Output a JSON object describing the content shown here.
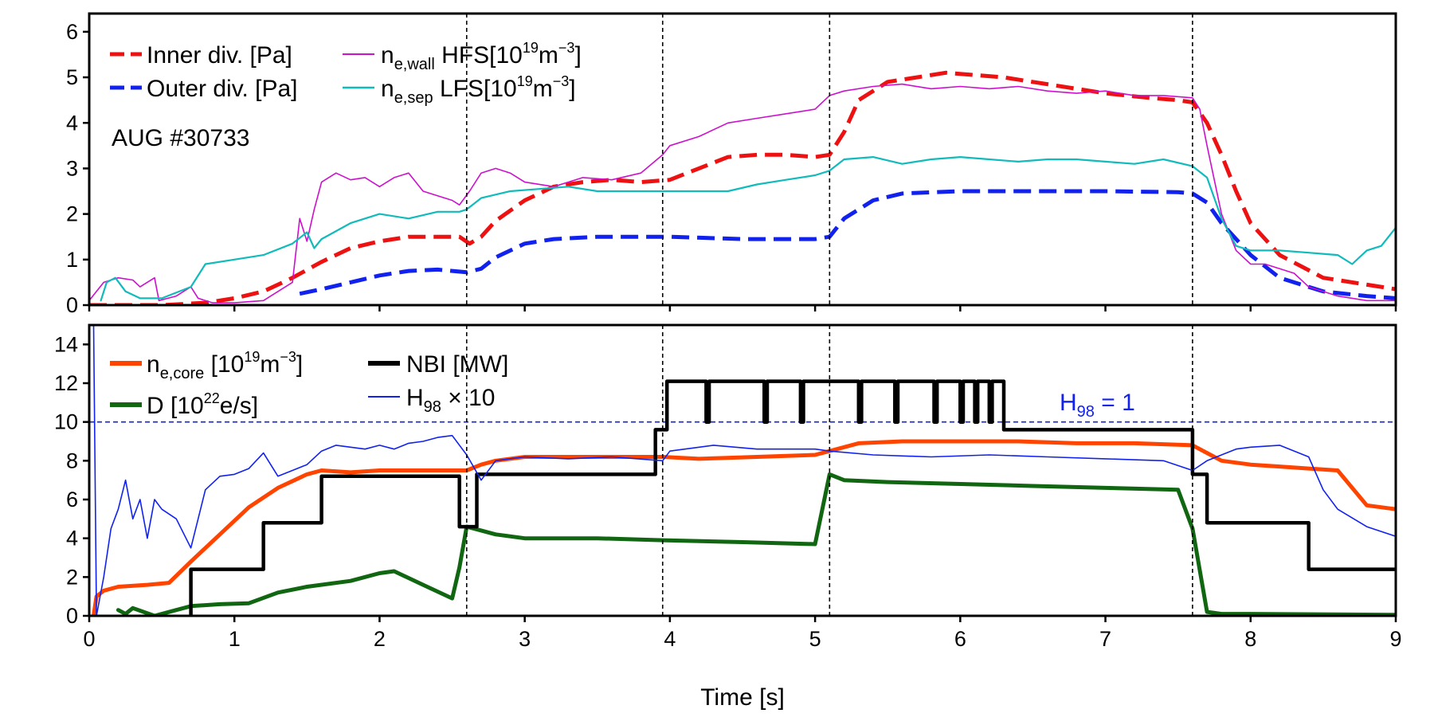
{
  "chart_data": [
    {
      "type": "line",
      "panel": "top",
      "annotation": "AUG #30733",
      "xlim": [
        0,
        9
      ],
      "ylim": [
        0,
        6.4
      ],
      "yticks": [
        0,
        1,
        2,
        3,
        4,
        5,
        6
      ],
      "vlines": [
        2.6,
        3.95,
        5.1,
        7.6
      ],
      "legend_placement": "top-left",
      "series": [
        {
          "name": "Inner div. [Pa]",
          "style": "dashed",
          "color": "#ee1111",
          "width": 5,
          "x": [
            0,
            0.5,
            0.8,
            1.0,
            1.2,
            1.4,
            1.6,
            1.8,
            2.0,
            2.2,
            2.4,
            2.55,
            2.62,
            2.7,
            2.8,
            3.0,
            3.2,
            3.4,
            3.6,
            3.8,
            4.0,
            4.2,
            4.4,
            4.6,
            4.8,
            5.0,
            5.1,
            5.2,
            5.3,
            5.5,
            5.7,
            5.9,
            6.1,
            6.3,
            6.5,
            6.8,
            7.0,
            7.3,
            7.5,
            7.6,
            7.7,
            7.8,
            7.9,
            8.0,
            8.2,
            8.5,
            9.0
          ],
          "y": [
            0,
            0,
            0.05,
            0.15,
            0.3,
            0.6,
            0.95,
            1.25,
            1.4,
            1.5,
            1.5,
            1.5,
            1.35,
            1.5,
            1.85,
            2.3,
            2.6,
            2.7,
            2.75,
            2.7,
            2.75,
            3.0,
            3.25,
            3.3,
            3.3,
            3.25,
            3.3,
            3.8,
            4.5,
            4.9,
            5.0,
            5.1,
            5.05,
            5.0,
            4.9,
            4.75,
            4.65,
            4.55,
            4.5,
            4.45,
            4.0,
            3.3,
            2.5,
            1.8,
            1.1,
            0.6,
            0.35
          ]
        },
        {
          "name": "Outer div. [Pa]",
          "style": "dashed",
          "color": "#1122ee",
          "width": 5,
          "x": [
            1.45,
            1.6,
            1.8,
            2.0,
            2.2,
            2.4,
            2.6,
            2.7,
            2.8,
            3.0,
            3.2,
            3.5,
            4.0,
            4.5,
            5.0,
            5.1,
            5.2,
            5.4,
            5.6,
            6.0,
            6.5,
            7.0,
            7.5,
            7.6,
            7.7,
            7.8,
            8.0,
            8.2,
            8.5,
            8.8,
            9.0
          ],
          "y": [
            0.25,
            0.35,
            0.5,
            0.65,
            0.75,
            0.78,
            0.72,
            0.8,
            1.05,
            1.35,
            1.45,
            1.5,
            1.5,
            1.45,
            1.45,
            1.5,
            1.9,
            2.3,
            2.45,
            2.5,
            2.5,
            2.5,
            2.48,
            2.45,
            2.25,
            1.8,
            1.1,
            0.6,
            0.3,
            0.2,
            0.15
          ]
        },
        {
          "name": "n_e,wall HFS[10^19 m^-3]",
          "style": "solid",
          "color": "#cc11cc",
          "width": 1.6,
          "x": [
            0,
            0.05,
            0.1,
            0.2,
            0.3,
            0.35,
            0.45,
            0.48,
            0.6,
            0.7,
            0.75,
            0.85,
            1.0,
            1.2,
            1.4,
            1.45,
            1.5,
            1.55,
            1.6,
            1.7,
            1.8,
            1.9,
            2.0,
            2.1,
            2.2,
            2.3,
            2.4,
            2.5,
            2.55,
            2.62,
            2.7,
            2.8,
            2.9,
            3.0,
            3.2,
            3.4,
            3.6,
            3.8,
            3.95,
            4.0,
            4.2,
            4.4,
            4.6,
            4.8,
            5.0,
            5.1,
            5.2,
            5.4,
            5.6,
            5.8,
            6.0,
            6.2,
            6.4,
            6.6,
            6.8,
            7.0,
            7.2,
            7.4,
            7.6,
            7.65,
            7.7,
            7.8,
            7.9,
            8.0,
            8.1,
            8.2,
            8.3,
            8.4,
            8.6,
            8.8,
            9.0
          ],
          "y": [
            0.1,
            0.3,
            0.5,
            0.6,
            0.55,
            0.4,
            0.6,
            0.1,
            0.2,
            0.4,
            0.15,
            0.05,
            0.05,
            0.1,
            0.5,
            1.9,
            1.4,
            2.1,
            2.7,
            2.9,
            2.75,
            2.8,
            2.6,
            2.8,
            2.9,
            2.5,
            2.4,
            2.3,
            2.2,
            2.5,
            2.9,
            3.0,
            2.9,
            2.7,
            2.6,
            2.8,
            2.75,
            2.9,
            3.3,
            3.5,
            3.7,
            4.0,
            4.1,
            4.2,
            4.3,
            4.6,
            4.7,
            4.8,
            4.85,
            4.75,
            4.8,
            4.75,
            4.8,
            4.7,
            4.65,
            4.7,
            4.6,
            4.6,
            4.55,
            4.3,
            3.5,
            2.0,
            1.2,
            0.9,
            0.9,
            0.8,
            0.7,
            0.4,
            0.2,
            0.1,
            0.1
          ]
        },
        {
          "name": "n_e,sep LFS[10^19 m^-3]",
          "style": "solid",
          "color": "#11bbbb",
          "width": 2.2,
          "x": [
            0.08,
            0.12,
            0.18,
            0.25,
            0.35,
            0.5,
            0.7,
            0.8,
            1.0,
            1.2,
            1.4,
            1.5,
            1.55,
            1.6,
            1.8,
            2.0,
            2.2,
            2.4,
            2.55,
            2.6,
            2.7,
            2.9,
            3.1,
            3.3,
            3.5,
            3.7,
            3.95,
            4.2,
            4.4,
            4.6,
            4.8,
            5.0,
            5.1,
            5.2,
            5.4,
            5.6,
            5.8,
            6.0,
            6.2,
            6.4,
            6.6,
            6.8,
            7.0,
            7.2,
            7.4,
            7.6,
            7.7,
            7.8,
            7.9,
            8.0,
            8.2,
            8.4,
            8.6,
            8.7,
            8.8,
            8.9,
            9.0
          ],
          "y": [
            0.1,
            0.5,
            0.6,
            0.3,
            0.15,
            0.15,
            0.4,
            0.9,
            1.0,
            1.1,
            1.35,
            1.6,
            1.25,
            1.45,
            1.8,
            2.0,
            1.9,
            2.05,
            2.05,
            2.1,
            2.35,
            2.5,
            2.55,
            2.6,
            2.5,
            2.5,
            2.5,
            2.5,
            2.5,
            2.65,
            2.75,
            2.85,
            2.95,
            3.2,
            3.25,
            3.1,
            3.2,
            3.25,
            3.2,
            3.15,
            3.2,
            3.2,
            3.15,
            3.1,
            3.2,
            3.05,
            2.8,
            1.9,
            1.3,
            1.2,
            1.2,
            1.15,
            1.1,
            0.9,
            1.2,
            1.3,
            1.7
          ]
        }
      ]
    },
    {
      "type": "line",
      "panel": "bottom",
      "xlabel": "Time [s]",
      "xlim": [
        0,
        9
      ],
      "ylim": [
        0,
        15
      ],
      "xticks": [
        0,
        1,
        2,
        3,
        4,
        5,
        6,
        7,
        8,
        9
      ],
      "yticks": [
        0,
        2,
        4,
        6,
        8,
        10,
        12,
        14
      ],
      "vlines": [
        2.6,
        3.95,
        5.1,
        7.6
      ],
      "hline": {
        "y": 10,
        "label": "H98 = 1",
        "color": "#1122ee"
      },
      "legend_placement": "top-left",
      "series": [
        {
          "name": "n_e,core [10^19 m^-3]",
          "style": "solid",
          "color": "#ff4400",
          "width": 5,
          "x": [
            0.03,
            0.05,
            0.1,
            0.2,
            0.4,
            0.55,
            0.7,
            0.9,
            1.1,
            1.3,
            1.5,
            1.6,
            1.8,
            2.0,
            2.2,
            2.5,
            2.6,
            2.7,
            2.8,
            3.0,
            3.5,
            3.95,
            4.2,
            4.6,
            5.0,
            5.1,
            5.3,
            5.6,
            6.0,
            6.4,
            6.8,
            7.2,
            7.6,
            7.8,
            8.0,
            8.2,
            8.4,
            8.6,
            8.8,
            9.0
          ],
          "y": [
            0,
            1.0,
            1.3,
            1.5,
            1.6,
            1.7,
            2.8,
            4.2,
            5.6,
            6.6,
            7.3,
            7.5,
            7.4,
            7.5,
            7.5,
            7.5,
            7.5,
            7.8,
            8.0,
            8.2,
            8.2,
            8.2,
            8.1,
            8.2,
            8.3,
            8.5,
            8.9,
            9.0,
            9.0,
            9.0,
            8.9,
            8.9,
            8.8,
            8.0,
            7.8,
            7.7,
            7.6,
            7.5,
            5.7,
            5.5
          ]
        },
        {
          "name": "D [10^22 e/s]",
          "style": "solid",
          "color": "#116611",
          "width": 5,
          "x": [
            0.2,
            0.25,
            0.3,
            0.45,
            0.6,
            0.7,
            0.9,
            1.1,
            1.3,
            1.5,
            1.8,
            2.0,
            2.1,
            2.3,
            2.5,
            2.55,
            2.6,
            2.8,
            3.0,
            3.5,
            3.95,
            4.5,
            5.0,
            5.1,
            5.2,
            5.5,
            6.0,
            6.5,
            7.0,
            7.5,
            7.6,
            7.7,
            7.8,
            8.0,
            9.0
          ],
          "y": [
            0.3,
            0.1,
            0.4,
            0,
            0.3,
            0.5,
            0.6,
            0.65,
            1.2,
            1.5,
            1.8,
            2.2,
            2.3,
            1.6,
            0.9,
            2.5,
            4.6,
            4.2,
            4.0,
            4.0,
            3.9,
            3.8,
            3.7,
            7.3,
            7.0,
            6.9,
            6.8,
            6.7,
            6.6,
            6.5,
            4.5,
            0.2,
            0.1,
            0.1,
            0.05
          ]
        },
        {
          "name": "NBI [MW]",
          "style": "solid",
          "color": "#000000",
          "width": 4.5,
          "x": [
            0.7,
            0.7,
            1.2,
            1.2,
            1.6,
            1.6,
            2.55,
            2.55,
            2.67,
            2.67,
            3.9,
            3.9,
            3.98,
            3.98,
            4.25,
            4.25,
            4.27,
            4.27,
            4.65,
            4.65,
            4.67,
            4.67,
            4.9,
            4.9,
            4.92,
            4.92,
            5.3,
            5.3,
            5.32,
            5.32,
            5.55,
            5.55,
            5.57,
            5.57,
            5.82,
            5.82,
            5.84,
            5.84,
            6.0,
            6.0,
            6.02,
            6.02,
            6.1,
            6.1,
            6.12,
            6.12,
            6.2,
            6.2,
            6.22,
            6.22,
            6.3,
            6.3,
            7.6,
            7.6,
            7.7,
            7.7,
            8.4,
            8.4,
            9.0
          ],
          "y": [
            0,
            2.4,
            2.4,
            4.8,
            4.8,
            7.2,
            7.2,
            4.6,
            4.6,
            7.3,
            7.3,
            9.6,
            9.6,
            12.1,
            12.1,
            10.0,
            10.0,
            12.1,
            12.1,
            10.0,
            10.0,
            12.1,
            12.1,
            10.0,
            10.0,
            12.1,
            12.1,
            10.0,
            10.0,
            12.1,
            12.1,
            10.0,
            10.0,
            12.1,
            12.1,
            10.0,
            10.0,
            12.1,
            12.1,
            10.0,
            10.0,
            12.1,
            12.1,
            10.0,
            10.0,
            12.1,
            12.1,
            10.0,
            10.0,
            12.1,
            12.1,
            9.6,
            9.6,
            7.3,
            7.3,
            4.8,
            4.8,
            2.4,
            2.4
          ]
        },
        {
          "name": "H98 × 10",
          "style": "solid",
          "color": "#1122ee",
          "width": 1.6,
          "x": [
            0.03,
            0.05,
            0.1,
            0.15,
            0.2,
            0.25,
            0.3,
            0.35,
            0.4,
            0.45,
            0.5,
            0.6,
            0.7,
            0.8,
            0.9,
            1.0,
            1.1,
            1.2,
            1.3,
            1.4,
            1.5,
            1.6,
            1.7,
            1.8,
            1.9,
            2.0,
            2.1,
            2.2,
            2.3,
            2.4,
            2.5,
            2.6,
            2.7,
            2.8,
            3.0,
            3.3,
            3.6,
            3.95,
            4.0,
            4.3,
            4.6,
            5.0,
            5.1,
            5.4,
            5.8,
            6.2,
            6.6,
            7.0,
            7.4,
            7.6,
            7.7,
            7.8,
            7.9,
            8.0,
            8.2,
            8.4,
            8.5,
            8.6,
            8.8,
            9.0
          ],
          "y": [
            15,
            0,
            2.0,
            4.5,
            5.5,
            7.0,
            5.0,
            6.0,
            4.0,
            6.0,
            5.5,
            5.0,
            3.5,
            6.5,
            7.2,
            7.3,
            7.6,
            8.4,
            7.2,
            7.5,
            7.8,
            8.5,
            8.8,
            8.7,
            8.6,
            8.8,
            8.6,
            8.9,
            9.0,
            9.2,
            9.3,
            8.3,
            7.0,
            8.0,
            8.2,
            8.1,
            8.2,
            8.0,
            8.5,
            8.8,
            8.6,
            8.6,
            8.5,
            8.3,
            8.2,
            8.3,
            8.2,
            8.1,
            8.0,
            7.5,
            8.0,
            8.3,
            8.6,
            8.7,
            8.8,
            8.2,
            6.5,
            5.5,
            4.6,
            4.1
          ]
        }
      ]
    }
  ]
}
